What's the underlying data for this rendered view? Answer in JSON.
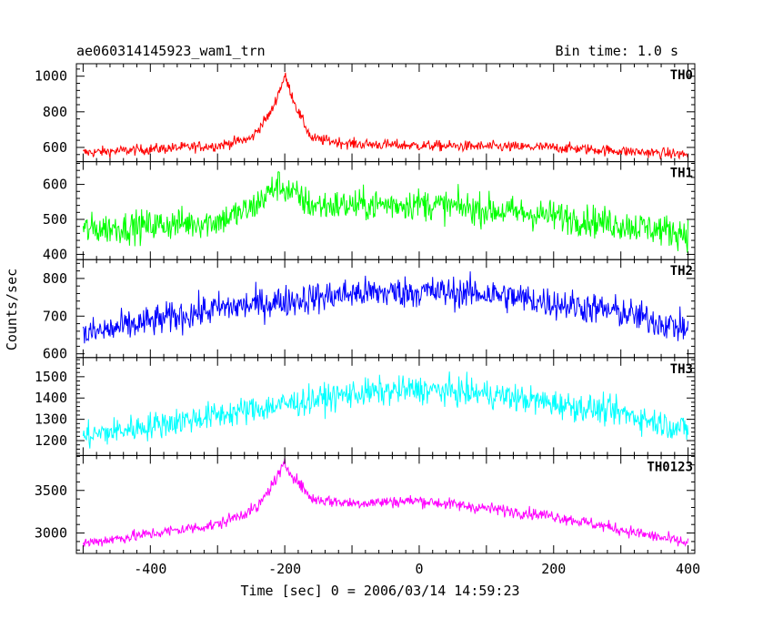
{
  "header": {
    "left_title": "ae060314145923_wam1_trn",
    "right_title": "Bin time: 1.0 s"
  },
  "axes": {
    "ylabel": "Counts/sec",
    "xlabel": "Time [sec] 0 = 2006/03/14 14:59:23",
    "xlim": [
      -510,
      410
    ],
    "xticks": [
      -400,
      -200,
      0,
      200,
      400
    ]
  },
  "chart_data": [
    {
      "type": "line",
      "series": [
        {
          "name": "TH0"
        }
      ],
      "color": "#ff0000",
      "ylim": [
        520,
        1070
      ],
      "yticks": [
        600,
        800,
        1000
      ],
      "x_range": [
        -500,
        400
      ],
      "baseline": [
        [
          -500,
          570
        ],
        [
          -300,
          610
        ],
        [
          -250,
          650
        ],
        [
          -220,
          800
        ],
        [
          -200,
          1000
        ],
        [
          -180,
          800
        ],
        [
          -160,
          650
        ],
        [
          -100,
          620
        ],
        [
          0,
          610
        ],
        [
          200,
          600
        ],
        [
          400,
          560
        ]
      ],
      "noise_amplitude": 30
    },
    {
      "type": "line",
      "series": [
        {
          "name": "TH1"
        }
      ],
      "color": "#00ff00",
      "ylim": [
        385,
        665
      ],
      "yticks": [
        400,
        500,
        600
      ],
      "x_range": [
        -500,
        400
      ],
      "baseline": [
        [
          -500,
          470
        ],
        [
          -300,
          495
        ],
        [
          -250,
          530
        ],
        [
          -210,
          600
        ],
        [
          -160,
          540
        ],
        [
          -100,
          540
        ],
        [
          0,
          545
        ],
        [
          200,
          510
        ],
        [
          400,
          460
        ]
      ],
      "noise_amplitude": 45
    },
    {
      "type": "line",
      "series": [
        {
          "name": "TH2"
        }
      ],
      "color": "#0000ff",
      "ylim": [
        590,
        850
      ],
      "yticks": [
        600,
        700,
        800
      ],
      "x_range": [
        -500,
        400
      ],
      "baseline": [
        [
          -500,
          650
        ],
        [
          -300,
          720
        ],
        [
          -100,
          760
        ],
        [
          0,
          765
        ],
        [
          100,
          760
        ],
        [
          300,
          710
        ],
        [
          400,
          665
        ]
      ],
      "noise_amplitude": 42
    },
    {
      "type": "line",
      "series": [
        {
          "name": "TH3"
        }
      ],
      "color": "#00ffff",
      "ylim": [
        1130,
        1590
      ],
      "yticks": [
        1200,
        1300,
        1400,
        1500
      ],
      "x_range": [
        -500,
        400
      ],
      "baseline": [
        [
          -500,
          1220
        ],
        [
          -300,
          1320
        ],
        [
          -100,
          1420
        ],
        [
          0,
          1440
        ],
        [
          100,
          1420
        ],
        [
          300,
          1330
        ],
        [
          400,
          1250
        ]
      ],
      "noise_amplitude": 65
    },
    {
      "type": "line",
      "series": [
        {
          "name": "TH0123"
        }
      ],
      "color": "#ff00ff",
      "ylim": [
        2760,
        3910
      ],
      "yticks": [
        3000,
        3500
      ],
      "x_range": [
        -500,
        400
      ],
      "baseline": [
        [
          -500,
          2880
        ],
        [
          -300,
          3100
        ],
        [
          -240,
          3300
        ],
        [
          -200,
          3800
        ],
        [
          -160,
          3400
        ],
        [
          -100,
          3350
        ],
        [
          0,
          3380
        ],
        [
          200,
          3200
        ],
        [
          400,
          2880
        ]
      ],
      "noise_amplitude": 70
    }
  ]
}
